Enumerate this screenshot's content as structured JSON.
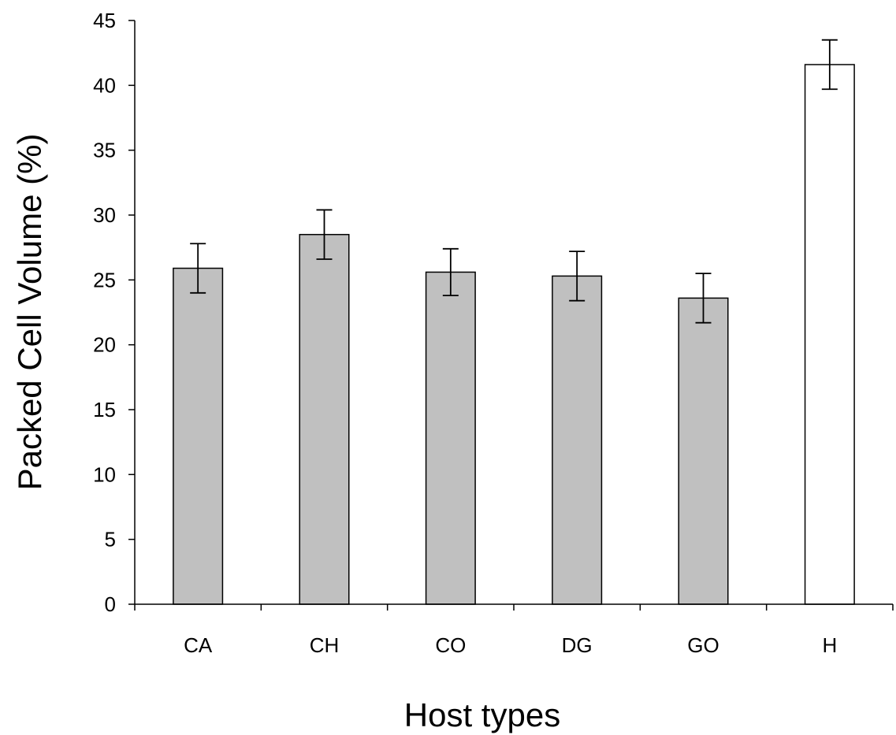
{
  "chart_data": {
    "type": "bar",
    "title": "",
    "xlabel": "Host types",
    "ylabel": "Packed Cell Volume (%)",
    "categories": [
      "CA",
      "CH",
      "CO",
      "DG",
      "GO",
      "H"
    ],
    "values": [
      25.9,
      28.5,
      25.6,
      25.3,
      23.6,
      41.6
    ],
    "errors": [
      1.9,
      1.9,
      1.8,
      1.9,
      1.9,
      1.9
    ],
    "bar_colors": [
      "#c0c0c0",
      "#c0c0c0",
      "#c0c0c0",
      "#c0c0c0",
      "#c0c0c0",
      "#ffffff"
    ],
    "ylim": [
      0,
      45
    ],
    "yticks": [
      0,
      5,
      10,
      15,
      20,
      25,
      30,
      35,
      40,
      45
    ],
    "grid": false,
    "legend": "none"
  }
}
